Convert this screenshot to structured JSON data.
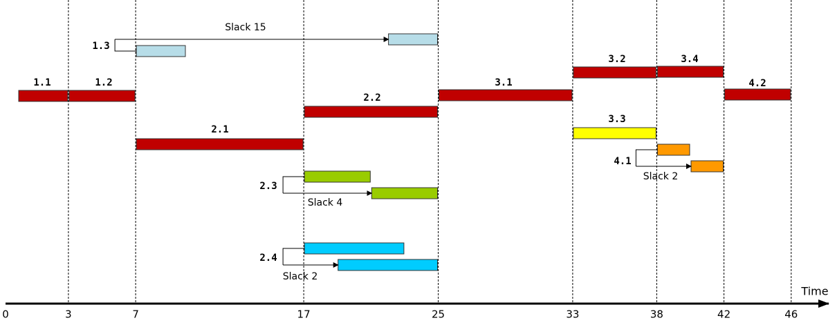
{
  "axis": {
    "label": "Time",
    "ticks": [
      0,
      3,
      7,
      17,
      25,
      33,
      38,
      42,
      46
    ]
  },
  "tasks": [
    {
      "label": "1.1",
      "color": "#c00000",
      "segments": [
        {
          "start": 0,
          "end": 3
        }
      ]
    },
    {
      "label": "1.2",
      "color": "#c00000",
      "segments": [
        {
          "start": 3,
          "end": 7
        }
      ]
    },
    {
      "label": "1.3",
      "color": "#b7dde8",
      "slack": "Slack 15",
      "segments": [
        {
          "start": 7,
          "end": 10
        },
        {
          "start": 22,
          "end": 25
        }
      ]
    },
    {
      "label": "2.1",
      "color": "#c00000",
      "segments": [
        {
          "start": 7,
          "end": 17
        }
      ]
    },
    {
      "label": "2.2",
      "color": "#c00000",
      "segments": [
        {
          "start": 17,
          "end": 25
        }
      ]
    },
    {
      "label": "2.3",
      "color": "#99cc00",
      "slack": "Slack 4",
      "segments": [
        {
          "start": 17,
          "end": 21
        },
        {
          "start": 21,
          "end": 25
        }
      ]
    },
    {
      "label": "2.4",
      "color": "#00ccff",
      "slack": "Slack 2",
      "segments": [
        {
          "start": 17,
          "end": 23
        },
        {
          "start": 19,
          "end": 25
        }
      ]
    },
    {
      "label": "3.1",
      "color": "#c00000",
      "segments": [
        {
          "start": 25,
          "end": 33
        }
      ]
    },
    {
      "label": "3.2",
      "color": "#c00000",
      "segments": [
        {
          "start": 33,
          "end": 38
        }
      ]
    },
    {
      "label": "3.3",
      "color": "#ffff00",
      "segments": [
        {
          "start": 33,
          "end": 38
        }
      ]
    },
    {
      "label": "3.4",
      "color": "#c00000",
      "segments": [
        {
          "start": 38,
          "end": 42
        }
      ]
    },
    {
      "label": "4.1",
      "color": "#ff9900",
      "slack": "Slack 2",
      "segments": [
        {
          "start": 38,
          "end": 40
        },
        {
          "start": 40,
          "end": 42
        }
      ]
    },
    {
      "label": "4.2",
      "color": "#c00000",
      "segments": [
        {
          "start": 42,
          "end": 46
        }
      ]
    }
  ]
}
